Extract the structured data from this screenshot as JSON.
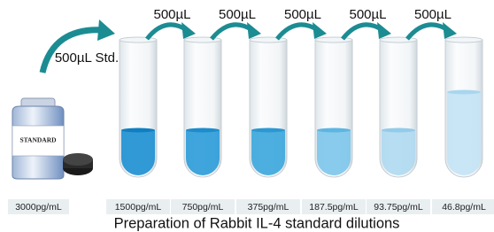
{
  "title": "Preparation of Rabbit IL-4 standard dilutions",
  "standard": {
    "label": "STANDARD",
    "concentration": "3000pg/mL",
    "transfer": "500µL Std."
  },
  "transfers": [
    "500µL",
    "500µL",
    "500µL",
    "500µL",
    "500µL"
  ],
  "tubes": [
    {
      "concentration": "1500pg/mL"
    },
    {
      "concentration": "750pg/mL"
    },
    {
      "concentration": "375pg/mL"
    },
    {
      "concentration": "187.5pg/mL"
    },
    {
      "concentration": "93.75pg/mL"
    },
    {
      "concentration": "46.8pg/mL"
    }
  ]
}
